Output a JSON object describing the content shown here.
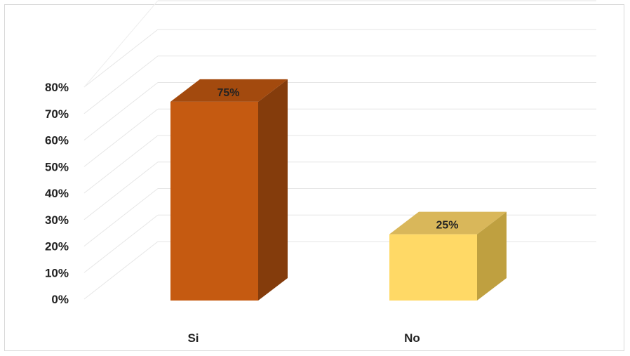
{
  "chart_data": {
    "type": "bar",
    "three_d": true,
    "categories": [
      "Si",
      "No"
    ],
    "values": [
      75,
      25
    ],
    "data_labels": [
      "75%",
      "25%"
    ],
    "ylim": [
      0,
      80
    ],
    "yticks": [
      "0%",
      "10%",
      "20%",
      "30%",
      "40%",
      "50%",
      "60%",
      "70%",
      "80%"
    ],
    "grid": true,
    "legend": "none",
    "colors": {
      "Si": {
        "front": "#c55a11",
        "side": "#843c0c",
        "top": "#a34a0e"
      },
      "No": {
        "front": "#ffd966",
        "side": "#bfa040",
        "top": "#d9b75a"
      }
    }
  }
}
